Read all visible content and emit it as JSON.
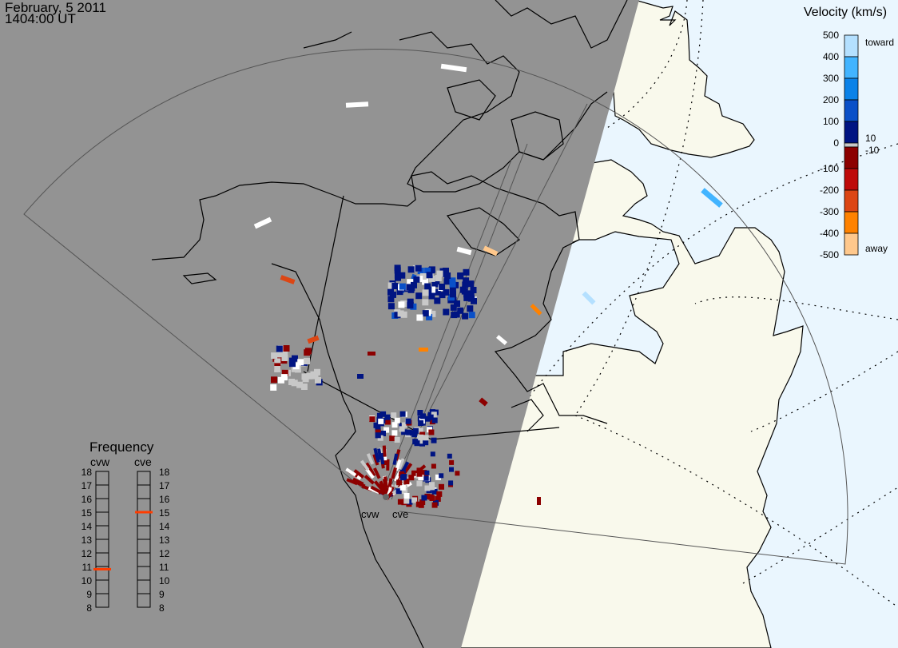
{
  "header": {
    "date": "February, 5 2011",
    "time": "1404:00 UT"
  },
  "velocity_scale": {
    "title": "Velocity (km/s)",
    "ticks": [
      "500",
      "400",
      "300",
      "200",
      "100",
      "0",
      "-100",
      "-200",
      "-300",
      "-400",
      "-500"
    ],
    "toward_label": "toward",
    "away_label": "away",
    "near_zero_labels": [
      "10",
      "-10"
    ],
    "colors": [
      "#b4e0ff",
      "#42b4ff",
      "#0a82e8",
      "#0a50c8",
      "#001482",
      "#c8c8c8",
      "#8c0000",
      "#be0a0a",
      "#dc4614",
      "#ff8200",
      "#ffc88c"
    ]
  },
  "frequency_panel": {
    "title": "Frequency",
    "ticks": [
      "18",
      "17",
      "16",
      "15",
      "14",
      "13",
      "12",
      "11",
      "10",
      "9",
      "8"
    ],
    "radars": [
      {
        "name": "cvw",
        "frequency_mhz": 10.8
      },
      {
        "name": "cve",
        "frequency_mhz": 15.0
      }
    ],
    "marker_color": "#ff3c00"
  },
  "map": {
    "radar_labels": [
      "cvw",
      "cve"
    ],
    "colors": {
      "night": "#939393",
      "land_day": "#f9f9ec",
      "ocean_day": "#eaf6fe"
    }
  }
}
